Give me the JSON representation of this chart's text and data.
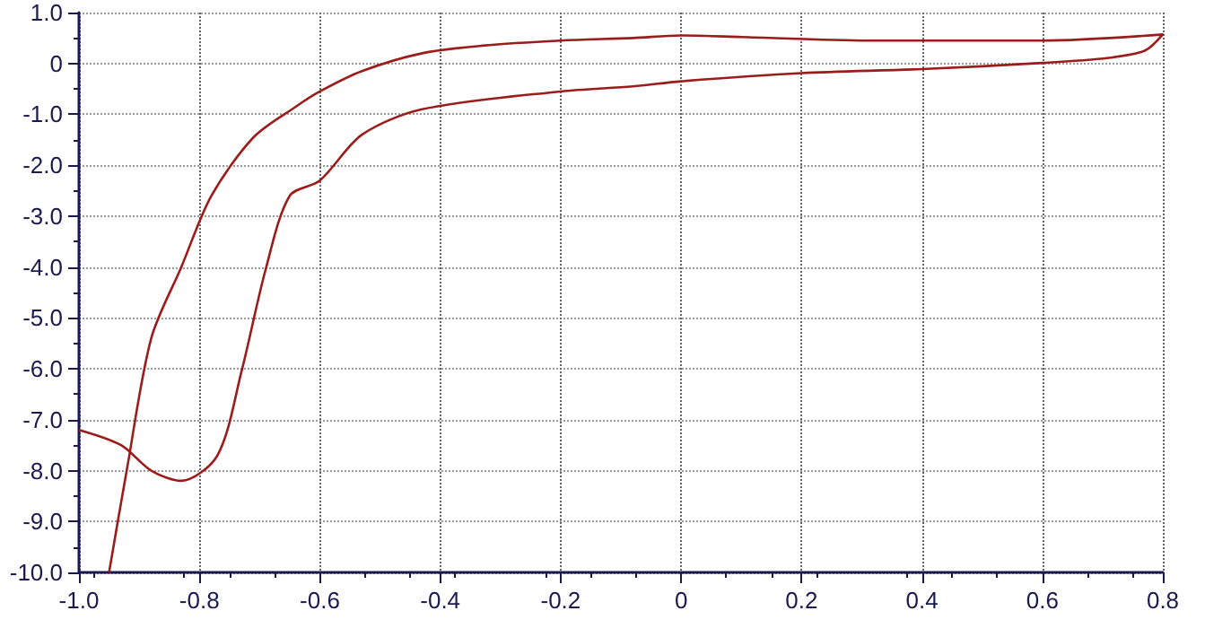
{
  "chart_data": {
    "type": "line",
    "x": [
      -1.0,
      -0.93,
      -0.88,
      -0.83,
      -0.77,
      -0.73,
      -0.69,
      -0.65,
      -0.6,
      -0.53,
      -0.43,
      -0.2,
      -0.08,
      0,
      0.2,
      0.4,
      0.6,
      0.71,
      0.77,
      0.8,
      0.6,
      0.31,
      0.1,
      0,
      -0.08,
      -0.2,
      -0.33,
      -0.43,
      -0.53,
      -0.6,
      -0.64,
      -0.71,
      -0.78,
      -0.83,
      -0.88,
      -0.92,
      -0.95
    ],
    "series": [
      {
        "color": "#9c1c1c",
        "values": [
          -7.2,
          -7.5,
          -8.0,
          -8.2,
          -7.7,
          -6.05,
          -4.05,
          -2.6,
          -2.3,
          -1.4,
          -0.9,
          -0.55,
          -0.45,
          -0.35,
          -0.19,
          -0.11,
          0.01,
          0.11,
          0.25,
          0.57,
          0.45,
          0.45,
          0.52,
          0.55,
          0.5,
          0.45,
          0.35,
          0.2,
          -0.15,
          -0.55,
          -0.85,
          -1.45,
          -2.6,
          -4.0,
          -5.4,
          -7.95,
          -10.0
        ]
      }
    ],
    "xlim": [
      -1.0,
      0.8
    ],
    "xticks": [
      {
        "value": -1.0,
        "label": "-1.0"
      },
      -0.8,
      -0.6,
      -0.4,
      -0.2,
      0,
      0.2,
      0.4,
      0.6,
      0.8
    ],
    "ylim": [
      -10.0,
      1.0
    ],
    "yticks": [
      {
        "value": 1.0,
        "label": "1.0"
      },
      0,
      {
        "value": -1.0,
        "label": "-1.0"
      },
      {
        "value": -2.0,
        "label": "-2.0"
      },
      {
        "value": -3.0,
        "label": "-3.0"
      },
      {
        "value": -4.0,
        "label": "-4.0"
      },
      {
        "value": -5.0,
        "label": "-5.0"
      },
      {
        "value": -6.0,
        "label": "-6.0"
      },
      {
        "value": -7.0,
        "label": "-7.0"
      },
      {
        "value": -8.0,
        "label": "-8.0"
      },
      {
        "value": -9.0,
        "label": "-9.0"
      },
      {
        "value": -10.0,
        "label": "-10.0"
      }
    ],
    "grid": true,
    "marker": "none",
    "line_style": "solid"
  }
}
